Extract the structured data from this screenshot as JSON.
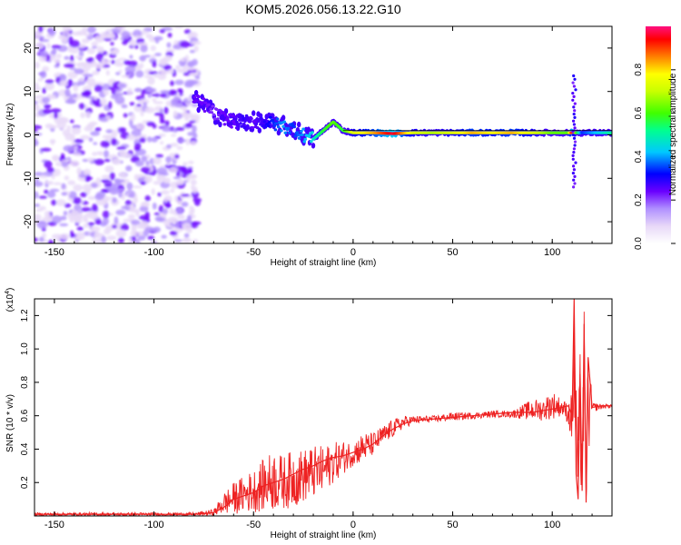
{
  "figure_title": "KOM5.2026.056.13.22.G10",
  "chart_data": [
    {
      "type": "heatmap",
      "title": "KOM5.2026.056.13.22.G10",
      "xlabel": "Height of straight line (km)",
      "ylabel": "Frequency (Hz)",
      "xlim": [
        -160,
        130
      ],
      "ylim": [
        -25,
        25
      ],
      "x_ticks": [
        -150,
        -100,
        -50,
        0,
        50,
        100
      ],
      "y_ticks": [
        20,
        10,
        0,
        -10,
        -20
      ],
      "colorbar": {
        "label": "Normalized spectral amplitude",
        "range": [
          0,
          1
        ],
        "ticks": [
          "0.0",
          "0.2",
          "0.4",
          "0.6",
          "0.8"
        ],
        "colormap": [
          "#ffffff",
          "#e8d8f8",
          "#b090ff",
          "#6a00ff",
          "#0000ff",
          "#00c8ff",
          "#00ff90",
          "#40ff00",
          "#c8ff00",
          "#ffff00",
          "#ff8000",
          "#ff0000",
          "#ff1080"
        ]
      },
      "ridge": {
        "x": [
          -80,
          -75,
          -70,
          -65,
          -60,
          -55,
          -50,
          -45,
          -40,
          -35,
          -30,
          -25,
          -20,
          -15,
          -10,
          -5,
          0,
          5,
          10,
          20,
          30,
          40,
          50,
          60,
          70,
          80,
          90,
          100,
          105,
          108,
          110,
          112,
          115,
          120,
          125,
          130
        ],
        "freq": [
          8,
          7,
          5,
          4,
          3,
          3,
          3,
          3,
          2.5,
          2,
          1.5,
          0,
          -1,
          1,
          3,
          1,
          0.5,
          0.5,
          0.5,
          0.3,
          0.5,
          0.5,
          0.5,
          0.5,
          0.5,
          0.5,
          0.5,
          0.5,
          0.5,
          0.5,
          0.5,
          0.5,
          0.5,
          0.5,
          0.5,
          0.5
        ],
        "amplitude": [
          0.25,
          0.25,
          0.22,
          0.25,
          0.25,
          0.3,
          0.25,
          0.3,
          0.35,
          0.4,
          0.35,
          0.4,
          0.45,
          0.55,
          0.6,
          0.55,
          0.7,
          0.75,
          0.8,
          0.95,
          0.7,
          0.65,
          0.7,
          0.8,
          0.75,
          0.8,
          0.7,
          0.6,
          0.6,
          0.6,
          0.95,
          0.6,
          0.35,
          0.4,
          0.45,
          0.5
        ]
      },
      "noise_region_km": [
        -160,
        -78
      ]
    },
    {
      "type": "line",
      "xlabel": "Height of straight line (km)",
      "ylabel": "SNR (10 * v/v)",
      "y_multiplier": "(x10^4)",
      "xlim": [
        -160,
        130
      ],
      "ylim": [
        0,
        1.3
      ],
      "x_ticks": [
        -150,
        -100,
        -50,
        0,
        50,
        100
      ],
      "y_ticks": [
        "1.2",
        "1.0",
        "0.8",
        "0.6",
        "0.4",
        "0.2"
      ],
      "series": [
        {
          "color": "#ee2222",
          "x": [
            -160,
            -140,
            -120,
            -100,
            -80,
            -70,
            -65,
            -60,
            -55,
            -50,
            -45,
            -40,
            -35,
            -30,
            -25,
            -20,
            -15,
            -10,
            -5,
            0,
            5,
            10,
            15,
            20,
            25,
            30,
            40,
            50,
            60,
            70,
            80,
            90,
            95,
            100,
            105,
            108,
            110,
            111,
            112,
            113,
            114,
            115,
            116,
            117,
            118,
            120,
            125,
            130
          ],
          "y": [
            0.01,
            0.01,
            0.01,
            0.01,
            0.01,
            0.02,
            0.05,
            0.1,
            0.12,
            0.14,
            0.18,
            0.2,
            0.22,
            0.25,
            0.28,
            0.3,
            0.33,
            0.35,
            0.36,
            0.38,
            0.4,
            0.43,
            0.48,
            0.52,
            0.55,
            0.57,
            0.58,
            0.59,
            0.6,
            0.61,
            0.62,
            0.62,
            0.63,
            0.64,
            0.65,
            0.66,
            0.6,
            1.3,
            0.25,
            0.1,
            0.85,
            0.15,
            1.15,
            0.08,
            0.95,
            0.65,
            0.66,
            0.66
          ],
          "envelope_max": [
            0.02,
            0.02,
            0.02,
            0.02,
            0.02,
            0.04,
            0.14,
            0.2,
            0.24,
            0.28,
            0.34,
            0.4,
            0.36,
            0.4,
            0.4,
            0.42,
            0.42,
            0.44,
            0.45,
            0.45,
            0.5,
            0.5,
            0.54,
            0.58,
            0.6,
            0.6,
            0.6,
            0.62,
            0.62,
            0.63,
            0.63,
            0.7,
            0.7,
            0.75,
            0.7,
            0.68,
            0.75,
            1.3,
            0.8,
            0.6,
            1.0,
            0.6,
            1.25,
            0.3,
            1.1,
            0.68,
            0.67,
            0.67
          ],
          "envelope_min": [
            0.0,
            0.0,
            0.0,
            0.0,
            0.0,
            0.0,
            0.01,
            0.01,
            0.02,
            0.02,
            0.03,
            0.03,
            0.04,
            0.05,
            0.08,
            0.1,
            0.12,
            0.2,
            0.25,
            0.3,
            0.32,
            0.36,
            0.42,
            0.47,
            0.52,
            0.55,
            0.56,
            0.57,
            0.58,
            0.59,
            0.59,
            0.57,
            0.57,
            0.58,
            0.6,
            0.55,
            0.4,
            0.5,
            0.1,
            0.08,
            0.2,
            0.08,
            0.4,
            0.06,
            0.3,
            0.62,
            0.64,
            0.65
          ]
        }
      ]
    }
  ]
}
